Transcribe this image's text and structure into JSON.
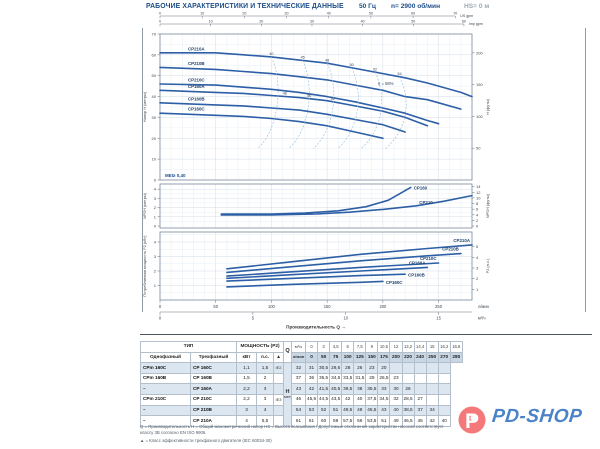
{
  "header": {
    "title": "РАБОЧИЕ ХАРАКТЕРИСТИКИ И ТЕХНИЧЕСКИЕ ДАННЫЕ",
    "frequency": "50 Гц",
    "speed": "n= 2900 об/мин",
    "suction": "HS= 0 м"
  },
  "chart_data": [
    {
      "type": "line",
      "id": "head",
      "ylabel_left": "Напор H (метры)",
      "ylabel_right": "H (футы)",
      "yticks_left": [
        0,
        10,
        20,
        30,
        40,
        50,
        60,
        70
      ],
      "yticks_right": [
        50,
        100,
        150,
        200
      ],
      "ylim": [
        0,
        70
      ],
      "series": [
        {
          "name": "CP210A",
          "x": [
            0,
            50,
            75,
            100,
            125,
            150,
            175,
            200,
            220,
            240,
            250,
            270,
            280
          ],
          "y": [
            61,
            61,
            60,
            59,
            57.5,
            56,
            53.5,
            51,
            49,
            46.5,
            45,
            42,
            40
          ]
        },
        {
          "name": "CP210B",
          "x": [
            0,
            50,
            75,
            100,
            125,
            150,
            175,
            200,
            220,
            240,
            250,
            270
          ],
          "y": [
            54,
            53,
            52,
            51,
            49.5,
            48,
            45.5,
            43,
            40,
            38.5,
            37,
            34
          ]
        },
        {
          "name": "CP210C",
          "x": [
            0,
            50,
            75,
            100,
            125,
            150,
            175,
            200,
            220,
            240,
            250
          ],
          "y": [
            46,
            45.5,
            44.5,
            43.5,
            42,
            40,
            37.5,
            34.5,
            32,
            28.5,
            27
          ]
        },
        {
          "name": "CP160A",
          "x": [
            0,
            50,
            75,
            100,
            125,
            150,
            175,
            200,
            220,
            240
          ],
          "y": [
            43,
            42,
            41.5,
            40.5,
            39.5,
            38,
            35.5,
            33,
            30,
            26
          ]
        },
        {
          "name": "CP160B",
          "x": [
            0,
            50,
            75,
            100,
            125,
            150,
            175,
            200,
            220
          ],
          "y": [
            37,
            36,
            35.5,
            34.5,
            33.5,
            31.5,
            29,
            26.5,
            23
          ]
        },
        {
          "name": "CP160C",
          "x": [
            0,
            50,
            75,
            100,
            125,
            150,
            175,
            200
          ],
          "y": [
            32,
            31,
            30.5,
            29.5,
            28,
            26,
            23,
            20
          ]
        }
      ],
      "efficiency_isolines": [
        {
          "q": 100,
          "label": "40"
        },
        {
          "q": 128,
          "label": "45"
        },
        {
          "q": 150,
          "label": "48"
        },
        {
          "q": 172,
          "label": "50"
        },
        {
          "q": 193,
          "label": "52"
        },
        {
          "q": 215,
          "label": "54"
        }
      ],
      "efficiency_labels_secondary": [
        {
          "q": 112,
          "label": "48"
        },
        {
          "q": 134,
          "label": "50"
        },
        {
          "q": 155,
          "label": "52"
        }
      ],
      "eta_label": "η = 58%",
      "mei_label": "MEI≥ 0,40"
    },
    {
      "type": "line",
      "id": "npsh",
      "ylabel_left": "NPSH (метры)",
      "ylabel_right": "NPSH (футы)",
      "yticks_left": [
        0,
        1,
        2,
        3,
        4
      ],
      "yticks_right": [
        0,
        2,
        4,
        6,
        8,
        10,
        12,
        14
      ],
      "ylim": [
        0,
        4.5
      ],
      "series": [
        {
          "name": "CP160",
          "x": [
            55,
            100,
            130,
            160,
            185,
            205,
            225
          ],
          "y": [
            1.3,
            1.3,
            1.4,
            1.65,
            2.1,
            2.8,
            4.2
          ]
        },
        {
          "name": "CP210",
          "x": [
            55,
            100,
            140,
            170,
            200,
            230,
            255,
            280
          ],
          "y": [
            1.2,
            1.2,
            1.3,
            1.5,
            1.8,
            2.2,
            2.7,
            3.3
          ]
        }
      ]
    },
    {
      "type": "line",
      "id": "power",
      "ylabel_left": "Потребляемая мощность P2 (кВт)",
      "ylabel_right": "P2 (л.с.)",
      "yticks_left": [
        1,
        2,
        3,
        4
      ],
      "yticks_right": [
        1,
        2,
        3,
        4,
        5
      ],
      "ylim": [
        0,
        4.5
      ],
      "series": [
        {
          "name": "CP210A",
          "x": [
            60,
            120,
            180,
            240,
            280
          ],
          "y": [
            2.15,
            2.65,
            3.15,
            3.55,
            3.8
          ]
        },
        {
          "name": "CP210B",
          "x": [
            60,
            120,
            180,
            240,
            270
          ],
          "y": [
            1.9,
            2.3,
            2.7,
            3.05,
            3.2
          ]
        },
        {
          "name": "CP210C",
          "x": [
            60,
            120,
            180,
            250
          ],
          "y": [
            1.65,
            1.95,
            2.25,
            2.55
          ]
        },
        {
          "name": "CP160A",
          "x": [
            60,
            120,
            180,
            240
          ],
          "y": [
            1.5,
            1.75,
            2.0,
            2.25
          ]
        },
        {
          "name": "CP160B",
          "x": [
            60,
            120,
            180,
            220
          ],
          "y": [
            1.3,
            1.5,
            1.68,
            1.78
          ]
        },
        {
          "name": "CP160C",
          "x": [
            60,
            120,
            180,
            200
          ],
          "y": [
            0.9,
            1.08,
            1.22,
            1.28
          ]
        }
      ]
    }
  ],
  "q_axis": {
    "label": "Производительность Q →",
    "lmin_ticks": [
      0,
      50,
      100,
      150,
      200,
      250
    ],
    "lmin_unit": "л/мин",
    "m3h_ticks": [
      0,
      5,
      10,
      15
    ],
    "m3h_unit": "м³/ч",
    "us_ticks": [
      0,
      10,
      20,
      30,
      40,
      50,
      60,
      70
    ],
    "us_unit": "US gpm",
    "imp_ticks": [
      0,
      10,
      20,
      30,
      40,
      50,
      60
    ],
    "imp_unit": "Imp gpm"
  },
  "tables": {
    "left": {
      "header_type": "ТИП",
      "header_power": "МОЩНОСТЬ (P2)",
      "sub_headers": [
        "Однофазный",
        "Трехфазный",
        "кВт",
        "л.с.",
        "▲"
      ],
      "rows": [
        {
          "single": "CPm 160C",
          "three": "CP 160C",
          "kw": "1,1",
          "hp": "1,5",
          "ie": "IE2"
        },
        {
          "single": "CPm 160B",
          "three": "CP 160B",
          "kw": "1,5",
          "hp": "2",
          "ie": ""
        },
        {
          "single": "–",
          "three": "CP 160A",
          "kw": "2,2",
          "hp": "3",
          "ie": ""
        },
        {
          "single": "CPm 210C",
          "three": "CP 210C",
          "kw": "2,2",
          "hp": "3",
          "ie": "IE3"
        },
        {
          "single": "–",
          "three": "CP 210B",
          "kw": "3",
          "hp": "4",
          "ie": ""
        },
        {
          "single": "–",
          "three": "CP 210A",
          "kw": "4",
          "hp": "5,5",
          "ie": ""
        }
      ]
    },
    "right": {
      "q_label": "Q",
      "m3h_label": "м³/ч",
      "lmin_label": "л/мин",
      "h_label": "H",
      "h_unit": "метры",
      "m3h": [
        "0",
        "3",
        "4,5",
        "6",
        "7,5",
        "9",
        "10,5",
        "12",
        "13,2",
        "14,4",
        "15",
        "16,2",
        "16,8"
      ],
      "lmin": [
        "0",
        "50",
        "75",
        "100",
        "125",
        "150",
        "175",
        "200",
        "220",
        "240",
        "250",
        "270",
        "280"
      ],
      "h_rows": [
        [
          "32",
          "31",
          "30,5",
          "29,5",
          "28",
          "26",
          "23",
          "20",
          "",
          "",
          "",
          "",
          ""
        ],
        [
          "37",
          "36",
          "35,5",
          "34,5",
          "33,5",
          "31,5",
          "29",
          "26,5",
          "23",
          "",
          "",
          "",
          ""
        ],
        [
          "43",
          "42",
          "41,5",
          "40,5",
          "39,5",
          "38",
          "35,5",
          "33",
          "30",
          "26",
          "",
          "",
          ""
        ],
        [
          "46",
          "45,5",
          "44,5",
          "43,5",
          "42",
          "40",
          "37,5",
          "34,5",
          "32",
          "28,5",
          "27",
          "",
          ""
        ],
        [
          "54",
          "53",
          "52",
          "51",
          "49,5",
          "48",
          "45,5",
          "43",
          "40",
          "38,5",
          "37",
          "34",
          ""
        ],
        [
          "61",
          "61",
          "60",
          "59",
          "57,5",
          "56",
          "53,5",
          "51",
          "49",
          "46,5",
          "45",
          "42",
          "40"
        ]
      ]
    }
  },
  "footnotes": {
    "line1": "Q = Производительность   H = Общий манометрический напор   HS = Высота всасывания / Допустимые отклонения характеристик насосов соответствует классу 3В согласно EN ISO 9906.",
    "line2": "▲ = Класс эффективности трехфазного двигателя (IEC 60034-30)"
  },
  "logo": {
    "text": "PD-SHOP",
    "letter": "P",
    "icon": "p-droplet-icon",
    "circle_color": "#f5797b",
    "text_color": "#4a83c9"
  },
  "colors": {
    "navy": "#1d4e89",
    "curve": "#2d5fa6",
    "curve_label": "#1c3e6b",
    "efficiency_line": "#8fbbdd",
    "grid_light": "#e2ebf3",
    "grid_strong": "#c6d4e1",
    "frame": "#76879a",
    "axis_text": "#3c4650",
    "row_shade": "#dce6f0",
    "header_shade": "#c9d7e4",
    "logo_circle": "#f5797b",
    "logo_text": "#4a83c9"
  }
}
